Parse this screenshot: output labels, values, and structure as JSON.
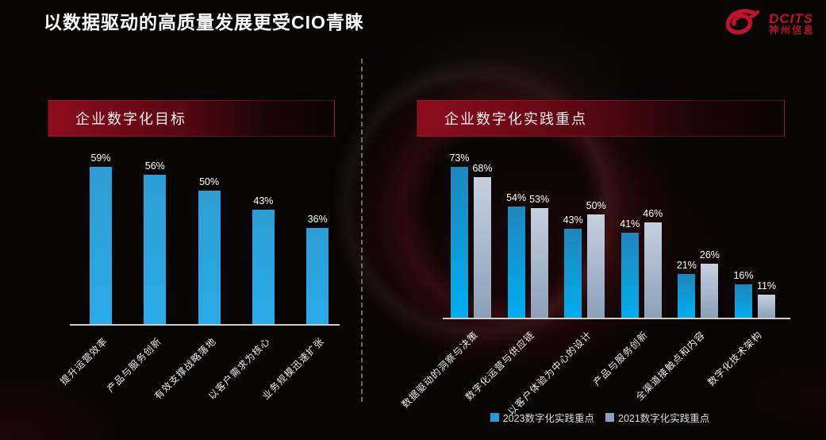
{
  "page_title": "以数据驱动的高质量发展更受CIO青睐",
  "logo": {
    "brand": "DCITS",
    "name": "神州信息",
    "color": "#c01229"
  },
  "chart_data": [
    {
      "type": "bar",
      "title": "企业数字化目标",
      "categories": [
        "提升运营效率",
        "产品与服务创新",
        "有效支撑战略落地",
        "以客户需求为核心",
        "业务规模迅速扩张"
      ],
      "values": [
        59,
        56,
        50,
        43,
        36
      ],
      "unit": "%",
      "ylim": [
        0,
        65
      ],
      "grid": false,
      "data_labels": true,
      "bar_color_top": "#2d9dd3",
      "bar_color_bottom": "#29abe8"
    },
    {
      "type": "bar",
      "title": "企业数字化实践重点",
      "categories": [
        "数据驱动的洞察与决策",
        "数字化运营与供应链",
        "以客户体验为中心的设计",
        "产品与服务创新",
        "全渠道接触点和内容",
        "数字化技术架构"
      ],
      "series": [
        {
          "name": "2023数字化实践重点",
          "values": [
            73,
            54,
            43,
            41,
            21,
            16
          ],
          "color_top": "#1f86bd",
          "color_bottom": "#00aeef",
          "legend_color": "#1f9fd6"
        },
        {
          "name": "2021数字化实践重点",
          "values": [
            68,
            53,
            50,
            46,
            26,
            11
          ],
          "color_top": "#c6d0de",
          "color_bottom": "#8ba0b9",
          "legend_color": "#8da2ba"
        }
      ],
      "unit": "%",
      "ylim": [
        0,
        80
      ],
      "grid": false,
      "data_labels": true,
      "legend_position": "bottom"
    }
  ]
}
